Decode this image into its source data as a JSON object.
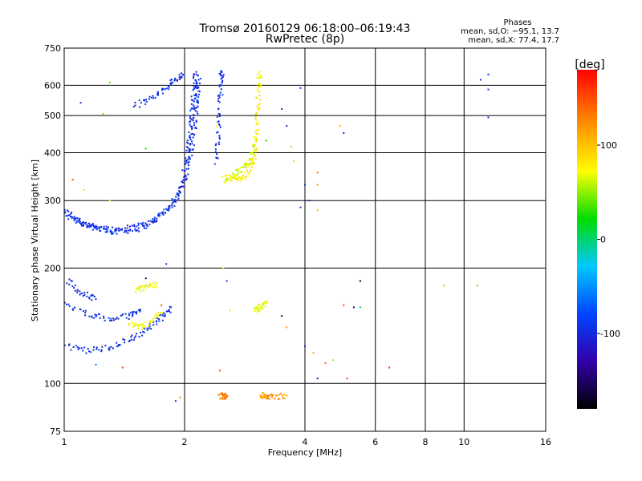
{
  "chart_data": {
    "type": "scatter",
    "title": "Tromsø 20160129 06:18:00–06:19:43",
    "subtitle": "RwPretec (8p)",
    "xlabel": "Frequency [MHz]",
    "ylabel": "Stationary phase Virtual Height [km]",
    "x_scale": "log2",
    "y_scale": "log",
    "xlim": [
      1,
      16
    ],
    "ylim": [
      75,
      750
    ],
    "x_ticks": [
      1,
      2,
      4,
      6,
      8,
      10,
      16
    ],
    "x_gridlines": [
      2,
      4,
      6,
      8,
      10
    ],
    "y_ticks": [
      75,
      100,
      200,
      300,
      400,
      500,
      600,
      750
    ],
    "y_gridlines": [
      100,
      200,
      300,
      400,
      500,
      600
    ],
    "grid": true,
    "stats": {
      "heading": "Phases",
      "line_o": "mean, sd,O: −95.1, 13.7",
      "line_x": "mean, sd,X:  77.4, 17.7"
    },
    "colorbar": {
      "label": "[deg]",
      "range": [
        -180,
        180
      ],
      "ticks": [
        100,
        0,
        -100
      ]
    },
    "series": [
      {
        "traces": [
          {
            "phase": -95,
            "points": [
              [
                1.0,
                282
              ],
              [
                1.08,
                268
              ],
              [
                1.15,
                258
              ],
              [
                1.25,
                252
              ],
              [
                1.35,
                249
              ],
              [
                1.5,
                252
              ],
              [
                1.65,
                262
              ],
              [
                1.8,
                282
              ],
              [
                1.9,
                305
              ],
              [
                2.0,
                340
              ],
              [
                2.05,
                380
              ],
              [
                2.1,
                430
              ],
              [
                2.13,
                500
              ],
              [
                2.15,
                560
              ],
              [
                2.17,
                620
              ]
            ]
          },
          {
            "phase": -95,
            "points": [
              [
                1.0,
                275
              ],
              [
                1.1,
                262
              ],
              [
                1.2,
                255
              ],
              [
                1.35,
                252
              ],
              [
                1.5,
                256
              ],
              [
                1.7,
                268
              ],
              [
                1.9,
                298
              ],
              [
                2.02,
                340
              ]
            ]
          },
          {
            "phase": -95,
            "points": [
              [
                1.5,
                530
              ],
              [
                1.65,
                555
              ],
              [
                1.8,
                590
              ],
              [
                1.9,
                620
              ],
              [
                1.98,
                640
              ]
            ]
          },
          {
            "phase": -95,
            "points": [
              [
                2.0,
                360
              ],
              [
                2.05,
                420
              ],
              [
                2.08,
                480
              ],
              [
                2.1,
                540
              ],
              [
                2.12,
                600
              ],
              [
                2.14,
                650
              ]
            ]
          },
          {
            "phase": -95,
            "points": [
              [
                2.4,
                380
              ],
              [
                2.43,
                450
              ],
              [
                2.45,
                540
              ],
              [
                2.47,
                620
              ],
              [
                2.48,
                650
              ]
            ]
          },
          {
            "phase": -95,
            "points": [
              [
                1.0,
                125
              ],
              [
                1.15,
                122
              ],
              [
                1.3,
                124
              ],
              [
                1.45,
                130
              ],
              [
                1.6,
                138
              ],
              [
                1.75,
                148
              ],
              [
                1.85,
                158
              ]
            ]
          },
          {
            "phase": -95,
            "points": [
              [
                1.0,
                160
              ],
              [
                1.15,
                152
              ],
              [
                1.3,
                147
              ],
              [
                1.45,
                150
              ],
              [
                1.55,
                156
              ]
            ]
          },
          {
            "phase": -95,
            "points": [
              [
                1.02,
                185
              ],
              [
                1.1,
                172
              ],
              [
                1.2,
                166
              ]
            ]
          },
          {
            "phase": 77,
            "points": [
              [
                2.55,
                345
              ],
              [
                2.7,
                340
              ],
              [
                2.85,
                350
              ],
              [
                2.95,
                372
              ],
              [
                3.0,
                400
              ],
              [
                3.03,
                450
              ],
              [
                3.05,
                520
              ],
              [
                3.07,
                600
              ],
              [
                3.08,
                650
              ]
            ]
          },
          {
            "phase": 60,
            "points": [
              [
                2.5,
                340
              ],
              [
                2.65,
                348
              ],
              [
                2.8,
                362
              ],
              [
                2.9,
                380
              ],
              [
                3.0,
                420
              ]
            ]
          },
          {
            "phase": 72,
            "points": [
              [
                1.45,
                142
              ],
              [
                1.55,
                140
              ],
              [
                1.65,
                145
              ],
              [
                1.75,
                153
              ]
            ]
          },
          {
            "phase": 70,
            "points": [
              [
                1.5,
                175
              ],
              [
                1.6,
                178
              ],
              [
                1.7,
                182
              ]
            ]
          },
          {
            "phase": 65,
            "points": [
              [
                3.0,
                155
              ],
              [
                3.1,
                158
              ],
              [
                3.2,
                162
              ]
            ]
          },
          {
            "phase": 130,
            "points": [
              [
                2.45,
                92
              ],
              [
                2.5,
                93
              ],
              [
                2.55,
                92
              ]
            ]
          },
          {
            "phase": 120,
            "points": [
              [
                3.1,
                93
              ],
              [
                3.2,
                93
              ],
              [
                3.3,
                92
              ],
              [
                3.6,
                93
              ]
            ]
          }
        ],
        "isolated": [
          [
            1.1,
            540,
            -100
          ],
          [
            1.3,
            610,
            40
          ],
          [
            1.25,
            505,
            40
          ],
          [
            1.6,
            410,
            20
          ],
          [
            1.9,
            90,
            -95
          ],
          [
            1.95,
            92,
            120
          ],
          [
            1.05,
            340,
            150
          ],
          [
            1.12,
            320,
            90
          ],
          [
            1.3,
            300,
            80
          ],
          [
            1.8,
            205,
            -95
          ],
          [
            1.4,
            110,
            160
          ],
          [
            1.2,
            112,
            -60
          ],
          [
            2.5,
            200,
            60
          ],
          [
            2.45,
            108,
            150
          ],
          [
            2.55,
            185,
            -95
          ],
          [
            2.4,
            470,
            70
          ],
          [
            2.6,
            155,
            60
          ],
          [
            3.2,
            430,
            20
          ],
          [
            3.5,
            520,
            -95
          ],
          [
            3.6,
            470,
            -95
          ],
          [
            3.7,
            415,
            100
          ],
          [
            3.75,
            380,
            90
          ],
          [
            3.5,
            150,
            -140
          ],
          [
            3.6,
            140,
            120
          ],
          [
            3.9,
            590,
            -95
          ],
          [
            4.0,
            330,
            -95
          ],
          [
            4.1,
            300,
            -95
          ],
          [
            3.9,
            288,
            -95
          ],
          [
            4.3,
            355,
            140
          ],
          [
            4.3,
            330,
            120
          ],
          [
            4.3,
            283,
            100
          ],
          [
            4.3,
            103,
            -130
          ],
          [
            4.0,
            125,
            -95
          ],
          [
            4.2,
            120,
            120
          ],
          [
            4.5,
            113,
            140
          ],
          [
            4.7,
            115,
            50
          ],
          [
            4.9,
            470,
            110
          ],
          [
            5.0,
            450,
            -95
          ],
          [
            5.0,
            160,
            150
          ],
          [
            5.5,
            185,
            -180
          ],
          [
            5.3,
            158,
            -140
          ],
          [
            5.5,
            158,
            0
          ],
          [
            5.1,
            103,
            160
          ],
          [
            6.5,
            110,
            170
          ],
          [
            8.9,
            180,
            100
          ],
          [
            10.8,
            180,
            120
          ],
          [
            11.0,
            620,
            -95
          ],
          [
            11.5,
            640,
            -95
          ],
          [
            11.5,
            585,
            -95
          ],
          [
            11.5,
            495,
            -95
          ],
          [
            1.6,
            188,
            -150
          ],
          [
            1.75,
            160,
            150
          ]
        ]
      }
    ]
  }
}
